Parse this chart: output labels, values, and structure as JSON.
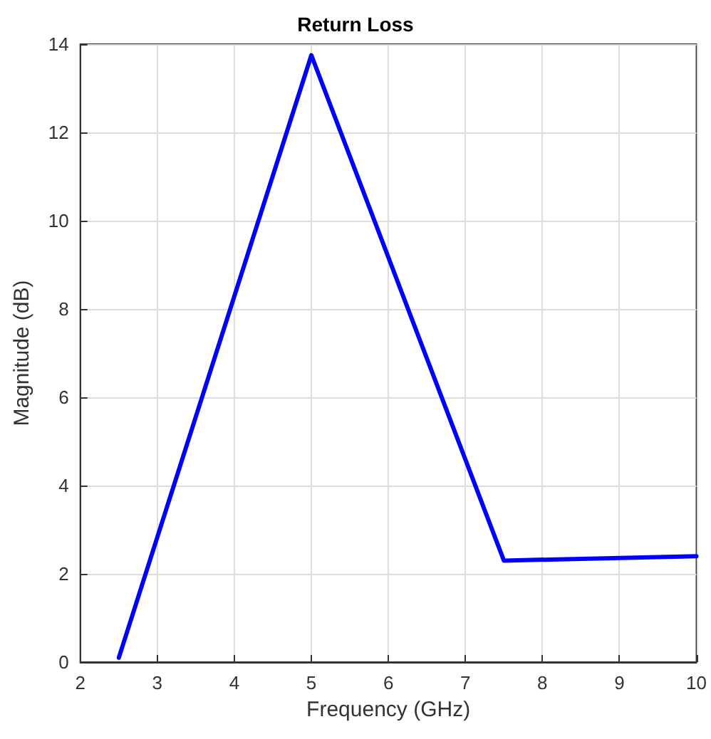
{
  "chart_data": {
    "type": "line",
    "title": "Return Loss",
    "xlabel": "Frequency (GHz)",
    "ylabel": "Magnitude (dB)",
    "x": [
      2.5,
      5,
      7.5,
      10
    ],
    "series": [
      {
        "color": "#0000ff",
        "values": [
          0.1,
          13.75,
          2.3,
          2.4
        ]
      }
    ],
    "xlim": [
      2,
      10
    ],
    "xticks": [
      2,
      3,
      4,
      5,
      6,
      7,
      8,
      9,
      10
    ],
    "ylim": [
      0,
      14
    ],
    "yticks": [
      0,
      2,
      4,
      6,
      8,
      10,
      12,
      14
    ],
    "grid": true,
    "marker": "none",
    "line_style": "solid"
  }
}
